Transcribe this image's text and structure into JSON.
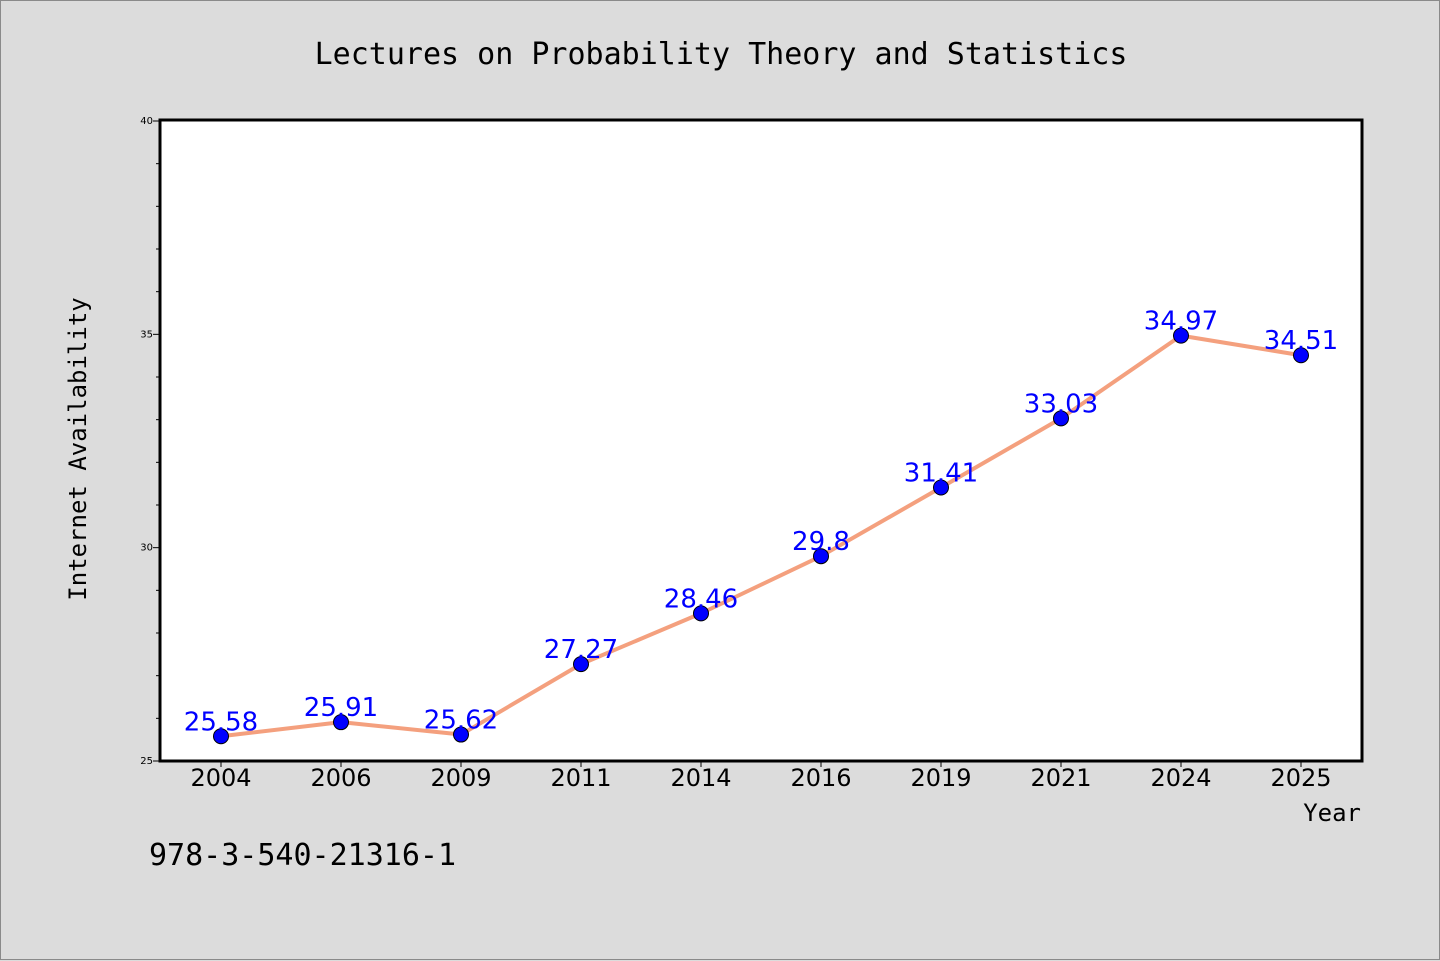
{
  "footer_code": "978-3-540-21316-1",
  "chart_data": {
    "type": "line",
    "title": "Lectures on Probability Theory and Statistics",
    "xlabel": "Year",
    "ylabel": "Internet Availability",
    "categories": [
      "2004",
      "2006",
      "2009",
      "2011",
      "2014",
      "2016",
      "2019",
      "2021",
      "2024",
      "2025"
    ],
    "series": [
      {
        "values": [
          25.58,
          25.91,
          25.62,
          27.27,
          28.46,
          29.8,
          31.41,
          33.03,
          34.97,
          34.51
        ],
        "data_labels": [
          "25.58",
          "25.91",
          "25.62",
          "27.27",
          "28.46",
          "29.8",
          "31.41",
          "33.03",
          "34.97",
          "34.51"
        ],
        "line_color": "#f4a07e",
        "marker_color": "#0000ff"
      }
    ],
    "ylim": [
      25,
      40
    ],
    "yticks": [
      "25",
      "30",
      "35",
      "40"
    ],
    "y_minor_step": 1,
    "grid": false,
    "legend": "none",
    "colors": {
      "background": "#dcdcdc",
      "plot_background": "#ffffff",
      "data_label": "#0000ff"
    }
  }
}
